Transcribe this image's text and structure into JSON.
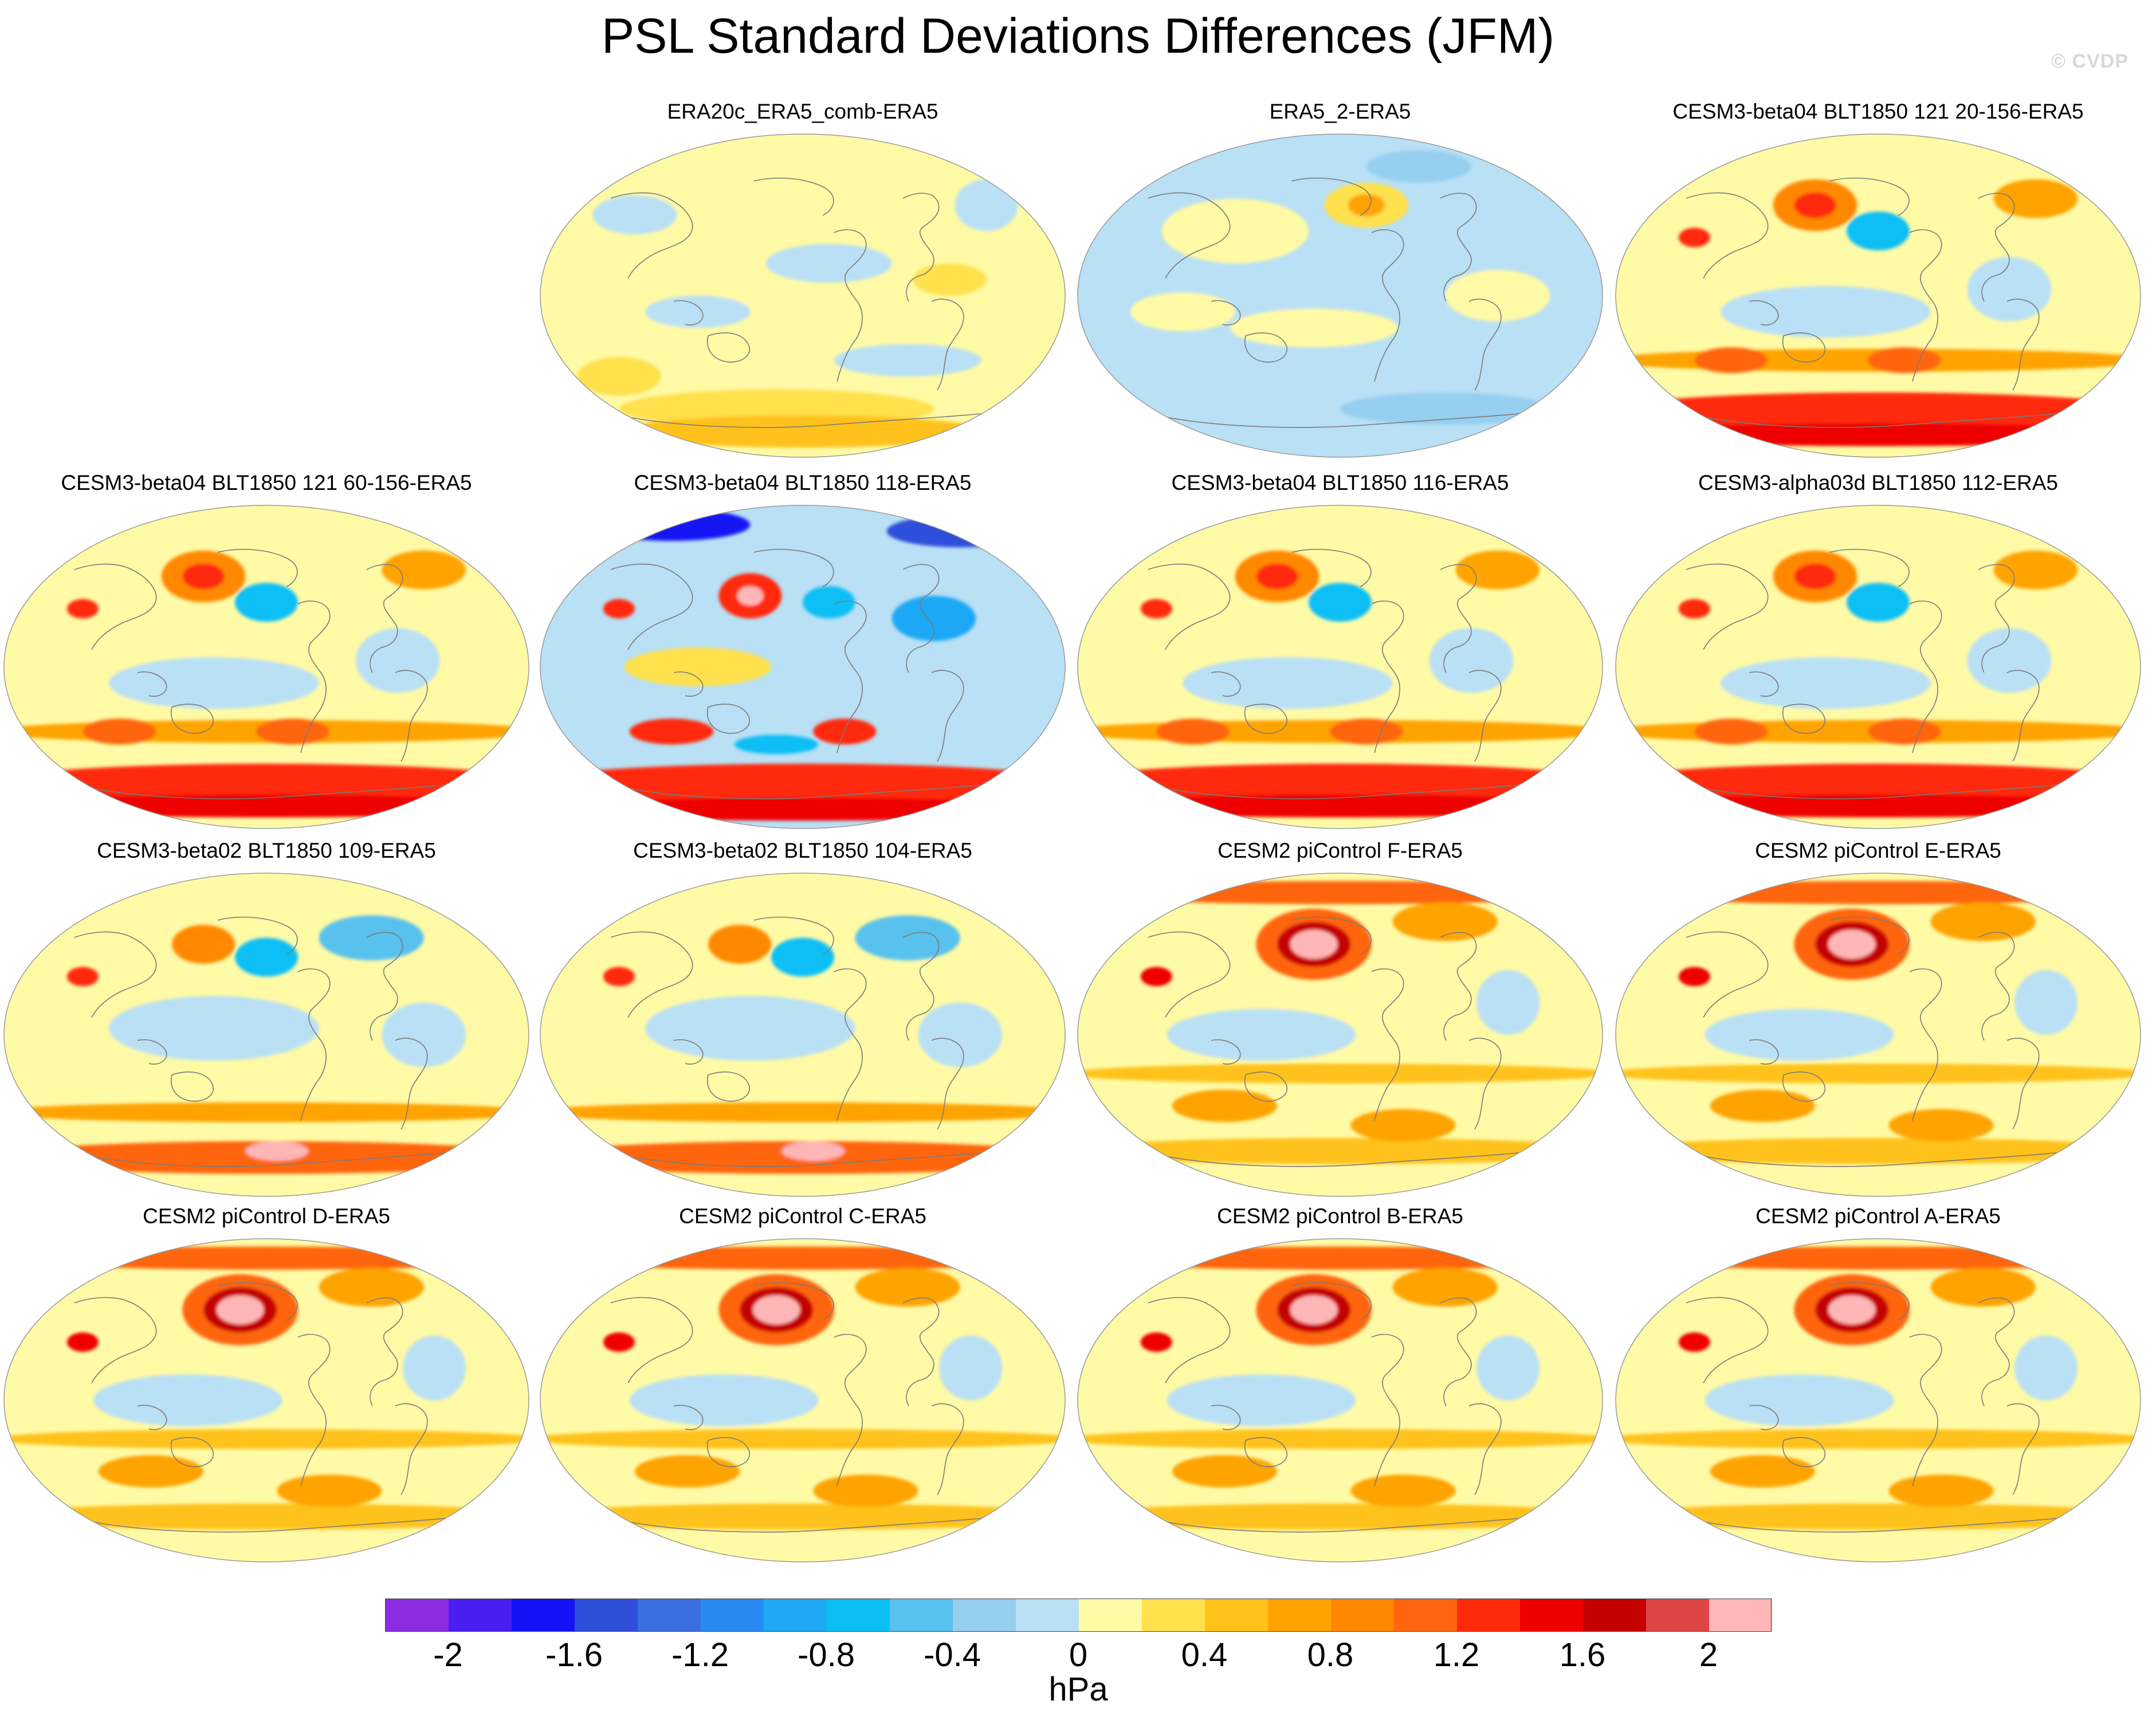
{
  "figure": {
    "title": "PSL Standard Deviations Differences (JFM)",
    "credit": "© CVDP"
  },
  "panels": [
    {
      "label": "ERA20c_ERA5_comb-ERA5",
      "pattern": "era20c"
    },
    {
      "label": "ERA5_2-ERA5",
      "pattern": "era5_2"
    },
    {
      "label": "CESM3-beta04 BLT1850 121 20-156-ERA5",
      "pattern": "beta_s"
    },
    {
      "label": "CESM3-beta04 BLT1850 121 60-156-ERA5",
      "pattern": "beta_s"
    },
    {
      "label": "CESM3-beta04 BLT1850 118-ERA5",
      "pattern": "beta_blue"
    },
    {
      "label": "CESM3-beta04 BLT1850 116-ERA5",
      "pattern": "beta_s"
    },
    {
      "label": "CESM3-alpha03d BLT1850 112-ERA5",
      "pattern": "beta_s"
    },
    {
      "label": "CESM3-beta02 BLT1850 109-ERA5",
      "pattern": "beta02"
    },
    {
      "label": "CESM3-beta02 BLT1850 104-ERA5",
      "pattern": "beta02"
    },
    {
      "label": "CESM2 piControl F-ERA5",
      "pattern": "cesm2"
    },
    {
      "label": "CESM2 piControl E-ERA5",
      "pattern": "cesm2"
    },
    {
      "label": "CESM2 piControl D-ERA5",
      "pattern": "cesm2"
    },
    {
      "label": "CESM2 piControl C-ERA5",
      "pattern": "cesm2"
    },
    {
      "label": "CESM2 piControl B-ERA5",
      "pattern": "cesm2"
    },
    {
      "label": "CESM2 piControl A-ERA5",
      "pattern": "cesm2"
    }
  ],
  "colorbar": {
    "units": "hPa",
    "levels": [
      -2,
      -1.8,
      -1.6,
      -1.4,
      -1.2,
      -1,
      -0.8,
      -0.6,
      -0.4,
      -0.2,
      0,
      0.2,
      0.4,
      0.6,
      0.8,
      1,
      1.2,
      1.4,
      1.6,
      1.8,
      2
    ],
    "tick_labels": [
      "-2",
      "-1.6",
      "-1.2",
      "-0.8",
      "-0.4",
      "0",
      "0.4",
      "0.8",
      "1.2",
      "1.6",
      "2"
    ],
    "colors": [
      "#8B2BE2",
      "#4B1EF0",
      "#1212F5",
      "#2F4FDB",
      "#3A6FE0",
      "#2A8AF2",
      "#1EA8F5",
      "#0BBFF5",
      "#58C1EE",
      "#96CFEF",
      "#B9E0F5",
      "#FFFAA6",
      "#FFE14D",
      "#FFC21A",
      "#FFA300",
      "#FF8800",
      "#FF6510",
      "#FF2A0A",
      "#EE0000",
      "#C40000",
      "#DE4646",
      "#FFB6B6"
    ]
  }
}
